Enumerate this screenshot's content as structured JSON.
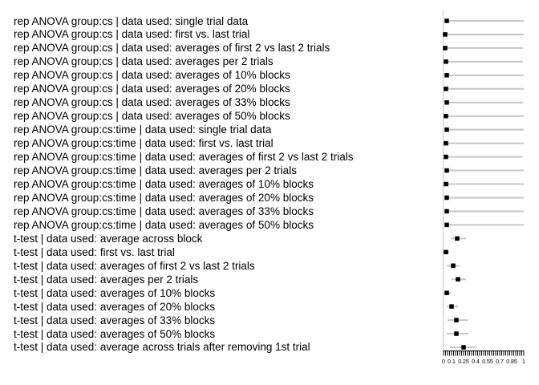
{
  "figure": {
    "background_color": "#ffffff",
    "text_color": "#000000",
    "interval_line_color": "#c6c6c6",
    "reference_line_color": "#d4d4d4",
    "marker_color": "#000000",
    "axis_color": "#000000"
  },
  "chart_data": {
    "type": "scatter",
    "subtype": "forest-plot-horizontal-ranges",
    "title": "",
    "xlabel": "",
    "ylabel": "",
    "xlim": [
      0,
      1
    ],
    "grid": false,
    "legend": false,
    "marker_shape": "filled-square",
    "reference_line_x": 0,
    "x_axis": {
      "minor_tick_step": 0.025,
      "minor_tick_count": 41,
      "tick_label_values": [
        0,
        0.1,
        0.25,
        0.4,
        0.55,
        0.7,
        0.85,
        1
      ],
      "tick_labels": [
        "0",
        "0.1",
        "0.25",
        "0.4",
        "0.55",
        "0.7",
        "0.85",
        "1"
      ]
    },
    "rows": [
      {
        "label": "rep ANOVA group:cs | data used: single trial data",
        "point": 0.04,
        "low": 0.01,
        "high": 1.0
      },
      {
        "label": "rep ANOVA group:cs | data used: first vs. last trial",
        "point": 0.02,
        "low": 0.0,
        "high": 1.0
      },
      {
        "label": "rep ANOVA group:cs | data used: averages of first 2 vs last 2 trials",
        "point": 0.02,
        "low": 0.0,
        "high": 0.99
      },
      {
        "label": "rep ANOVA group:cs | data used: averages per 2 trials",
        "point": 0.03,
        "low": 0.01,
        "high": 0.99
      },
      {
        "label": "rep ANOVA group:cs | data used: averages of 10% blocks",
        "point": 0.04,
        "low": 0.01,
        "high": 1.0
      },
      {
        "label": "rep ANOVA group:cs | data used: averages of 20% blocks",
        "point": 0.03,
        "low": 0.0,
        "high": 1.0
      },
      {
        "label": "rep ANOVA group:cs | data used: averages of 33% blocks",
        "point": 0.04,
        "low": 0.01,
        "high": 0.99
      },
      {
        "label": "rep ANOVA group:cs | data used: averages of 50% blocks",
        "point": 0.03,
        "low": 0.01,
        "high": 1.0
      },
      {
        "label": "rep ANOVA group:cs:time | data used: single trial data",
        "point": 0.04,
        "low": 0.01,
        "high": 1.0
      },
      {
        "label": "rep ANOVA group:cs:time | data used: first vs. last trial",
        "point": 0.03,
        "low": 0.0,
        "high": 1.0
      },
      {
        "label": "rep ANOVA group:cs:time | data used: averages of first 2 vs last 2 trials",
        "point": 0.03,
        "low": 0.01,
        "high": 0.99
      },
      {
        "label": "rep ANOVA group:cs:time | data used: averages per 2 trials",
        "point": 0.04,
        "low": 0.01,
        "high": 1.0
      },
      {
        "label": "rep ANOVA group:cs:time | data used: averages of 10% blocks",
        "point": 0.03,
        "low": 0.01,
        "high": 1.0
      },
      {
        "label": "rep ANOVA group:cs:time | data used: averages of 20% blocks",
        "point": 0.04,
        "low": 0.01,
        "high": 1.0
      },
      {
        "label": "rep ANOVA group:cs:time | data used: averages of 33% blocks",
        "point": 0.04,
        "low": 0.01,
        "high": 1.0
      },
      {
        "label": "rep ANOVA group:cs:time | data used: averages of 50% blocks",
        "point": 0.04,
        "low": 0.01,
        "high": 1.0
      },
      {
        "label": "t-test | data used: average across block",
        "point": 0.17,
        "low": 0.09,
        "high": 0.28
      },
      {
        "label": "t-test | data used: first vs. last trial",
        "point": 0.03,
        "low": 0.0,
        "high": 0.07
      },
      {
        "label": "t-test | data used: averages of first 2 vs last 2 trials",
        "point": 0.12,
        "low": 0.04,
        "high": 0.2
      },
      {
        "label": "t-test | data used: averages per 2 trials",
        "point": 0.18,
        "low": 0.1,
        "high": 0.28
      },
      {
        "label": "t-test | data used: averages of 10% blocks",
        "point": 0.04,
        "low": 0.0,
        "high": 0.1
      },
      {
        "label": "t-test | data used: averages of 20% blocks",
        "point": 0.1,
        "low": 0.04,
        "high": 0.18
      },
      {
        "label": "t-test | data used: averages of 33% blocks",
        "point": 0.16,
        "low": 0.05,
        "high": 0.3
      },
      {
        "label": "t-test | data used: averages of 50% blocks",
        "point": 0.16,
        "low": 0.04,
        "high": 0.31
      },
      {
        "label": "t-test | data used: average across trials after removing 1st trial",
        "point": 0.25,
        "low": 0.08,
        "high": 0.4
      }
    ]
  }
}
